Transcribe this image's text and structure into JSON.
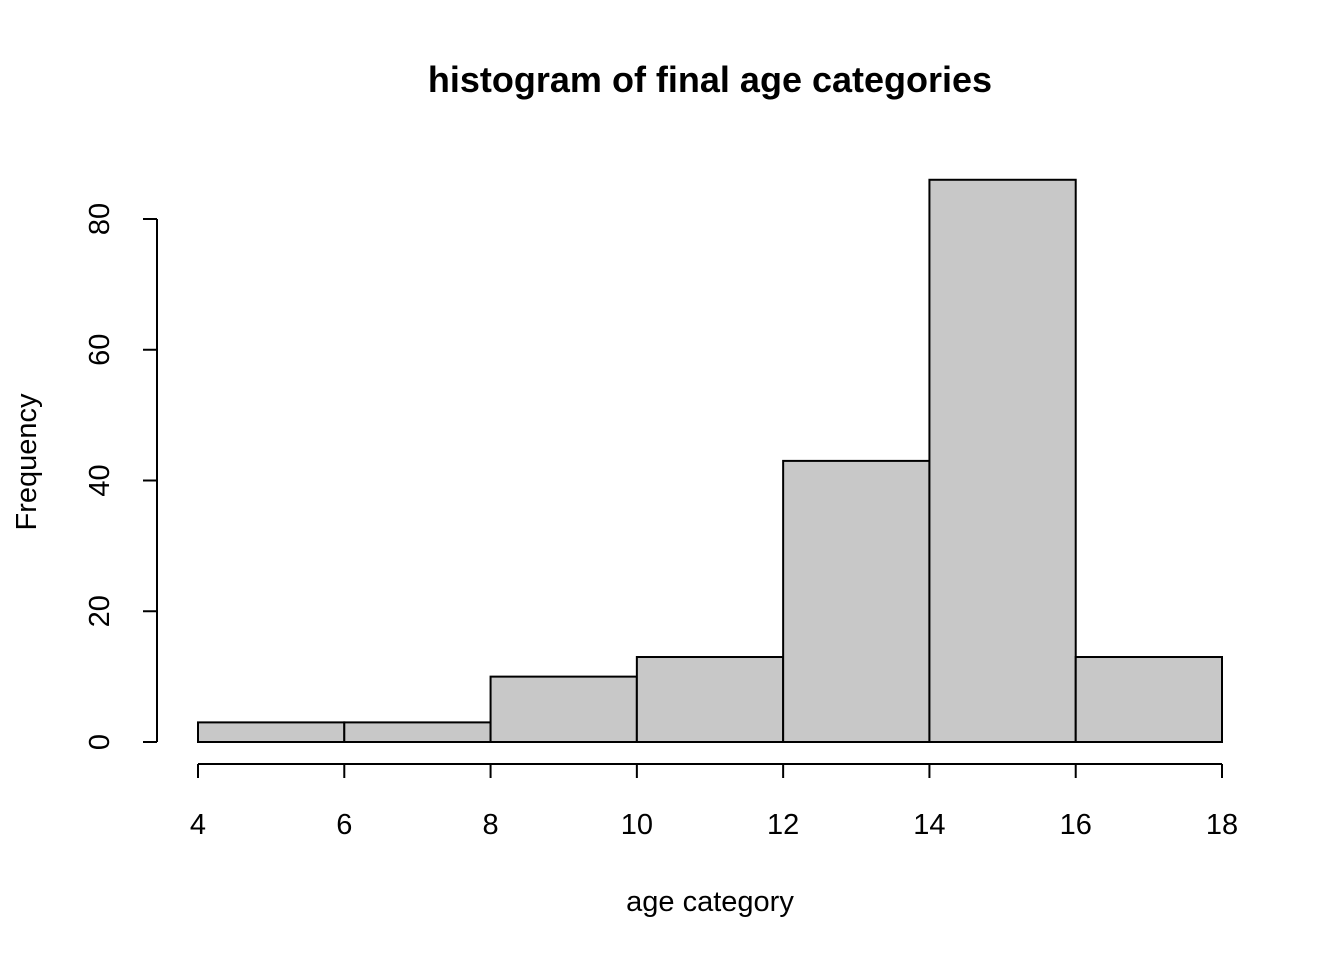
{
  "chart_data": {
    "type": "bar",
    "title": "histogram of final age categories",
    "xlabel": "age category",
    "ylabel": "Frequency",
    "bins": [
      {
        "start": 4,
        "end": 6,
        "count": 3
      },
      {
        "start": 6,
        "end": 8,
        "count": 3
      },
      {
        "start": 8,
        "end": 10,
        "count": 10
      },
      {
        "start": 10,
        "end": 12,
        "count": 13
      },
      {
        "start": 12,
        "end": 14,
        "count": 43
      },
      {
        "start": 14,
        "end": 16,
        "count": 86
      },
      {
        "start": 16,
        "end": 18,
        "count": 13
      }
    ],
    "xlim": [
      4,
      18
    ],
    "ylim": [
      0,
      86
    ],
    "x_ticks": [
      "4",
      "6",
      "8",
      "10",
      "12",
      "14",
      "16",
      "18"
    ],
    "y_ticks": [
      "0",
      "20",
      "40",
      "60",
      "80"
    ],
    "grid": false,
    "legend": "none",
    "colors": {
      "bar_fill": "#c8c8c8",
      "bar_stroke": "#000000"
    }
  }
}
